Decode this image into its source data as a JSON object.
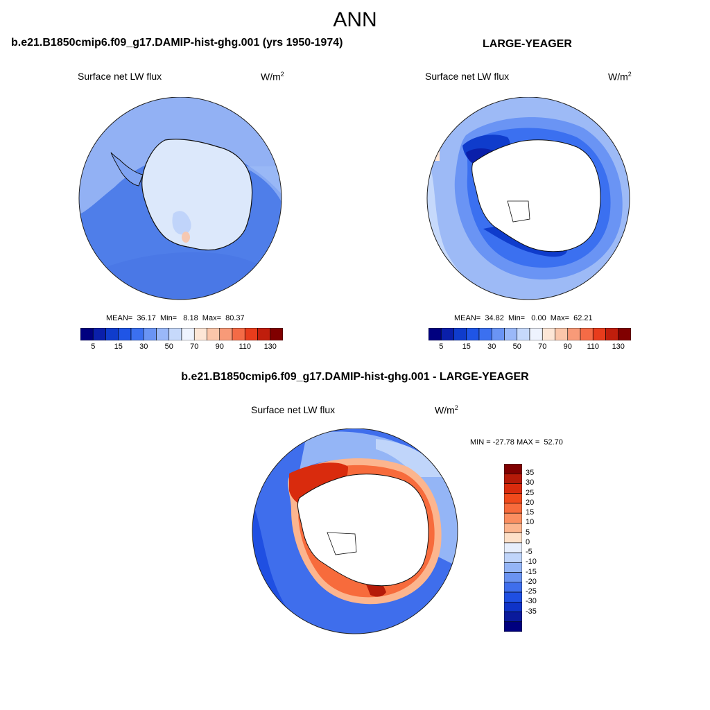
{
  "season": "ANN",
  "panels": [
    {
      "title": "b.e21.B1850cmip6.f09_g17.DAMIP-hist-ghg.001 (yrs 1950-1974)",
      "variable": "Surface net LW flux",
      "units": "W/m",
      "units_sup": "2",
      "stats": "MEAN=  36.17  Min=   8.18  Max=  80.37",
      "mean": 36.17,
      "min": 8.18,
      "max": 80.37,
      "land_masked": false
    },
    {
      "title": "LARGE-YEAGER",
      "variable": "Surface net LW flux",
      "units": "W/m",
      "units_sup": "2",
      "stats": "MEAN=  34.82  Min=   0.00  Max=  62.21",
      "mean": 34.82,
      "min": 0.0,
      "max": 62.21,
      "land_masked": true
    },
    {
      "title": "b.e21.B1850cmip6.f09_g17.DAMIP-hist-ghg.001 - LARGE-YEAGER",
      "variable": "Surface net LW flux",
      "units": "W/m",
      "units_sup": "2",
      "stats": "MIN = -27.78 MAX =  52.70",
      "min": -27.78,
      "max": 52.7,
      "land_masked": true
    }
  ],
  "colorbar_abs": {
    "tick_labels": [
      "5",
      "15",
      "30",
      "50",
      "70",
      "90",
      "110",
      "130"
    ],
    "colors": [
      "#00007f",
      "#0a1faa",
      "#0f3ccc",
      "#1f55e6",
      "#3b70f0",
      "#6a94f4",
      "#9ab8f8",
      "#c6d9fb",
      "#eef3fe",
      "#fde6d6",
      "#fbc6aa",
      "#f89a78",
      "#f46b46",
      "#e83c1c",
      "#c01e0c",
      "#800000"
    ]
  },
  "colorbar_diff": {
    "tick_labels": [
      "35",
      "30",
      "25",
      "20",
      "15",
      "10",
      "5",
      "0",
      "-5",
      "-10",
      "-15",
      "-20",
      "-25",
      "-30",
      "-35"
    ],
    "colors": [
      "#800000",
      "#b51a08",
      "#d92b0d",
      "#f04a1c",
      "#f76b3c",
      "#fb8e60",
      "#fcb58e",
      "#fde0c8",
      "#e6eefc",
      "#c0d5fa",
      "#94b5f6",
      "#6a93f1",
      "#3f6eec",
      "#1f4fe2",
      "#0f33c8",
      "#0a1a9c",
      "#00007f"
    ]
  },
  "colors": {
    "ocean_abs": "#4f7ee9",
    "ocean_abs_light": "#9dbaf6",
    "antarctica_abs": "#dce8fb",
    "coastline": "#111111",
    "land_mask": "#ffffff"
  }
}
